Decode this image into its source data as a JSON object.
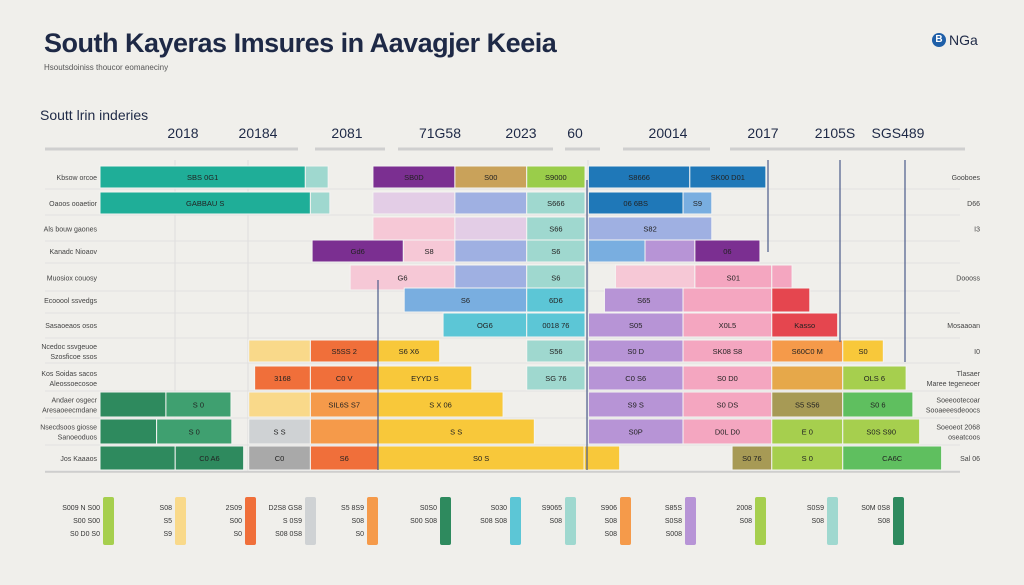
{
  "header": {
    "title": "South Kayeras  Imsures in Aavagjer Keeia",
    "subtitle": "Hsoutsdoiniss thoucor eomaneciny",
    "section": "Soutt lrin inderies",
    "logo_mark": "B",
    "logo_text": "NGa"
  },
  "chart_data": {
    "type": "bar",
    "orientation": "horizontal-stacked-timeline",
    "x_scale": [
      0,
      100
    ],
    "column_headers": [
      "2018",
      "20184",
      "2081",
      "71G58",
      "2023",
      "60",
      "20014",
      "2017",
      "2105S",
      "SGS489"
    ],
    "row_labels": [
      [
        "Kbsow orcoe"
      ],
      [
        "Oaoos ooaetior"
      ],
      [
        "Als bouw gaones"
      ],
      [
        "Kanadc Nioaov"
      ],
      [
        "Muosiox couosy"
      ],
      [
        "Ecooool ssvedgs"
      ],
      [
        "Sasaoeaos osos"
      ],
      [
        "Ncedoc ssvgeuoe",
        "Szosficoe ssos"
      ],
      [
        "Kos Soidas sacos",
        "Aleossoecosoe"
      ],
      [
        "Andaer osgecr",
        "Aresaoeecmdane"
      ],
      [
        "Nsecdsoos giosse",
        "Sanoeoduos"
      ],
      [
        "Jos Kaaaos"
      ]
    ],
    "right_labels": [
      [
        "Gooboes"
      ],
      [
        "D66"
      ],
      [
        "I3"
      ],
      [],
      [
        "Doooss"
      ],
      [],
      [
        "Mosaaoan"
      ],
      [
        "I0"
      ],
      [
        "Tlasaer",
        "Maree tegeneoer"
      ],
      [
        "Soeeootecoar",
        "Sooaeeesdeoocs"
      ],
      [
        "Soeoeot 2068",
        "oseatcoos"
      ],
      [
        "Sal 06"
      ]
    ],
    "colors": {
      "teal": "#1fae98",
      "lteal": "#9fd8cf",
      "purple": "#7b2f91",
      "tan": "#c9a25a",
      "lgreen": "#9acd4a",
      "blue": "#1f78b8",
      "lblue": "#79aee0",
      "lav": "#b794d6",
      "llav": "#e3cde6",
      "pink": "#f4a6c0",
      "lpink": "#f6c8d6",
      "peri": "#9fb0e2",
      "cyan": "#5cc6d6",
      "red": "#e5464f",
      "orange": "#f59a4a",
      "ored": "#f06f3a",
      "yellow": "#f8c83a",
      "lyellow": "#f9d98a",
      "amber": "#e6a84a",
      "olive": "#a79a55",
      "ygreen": "#a6cf4e",
      "green": "#5fbf5f",
      "dgreen": "#2e8a5e",
      "mgreen": "#3fa070",
      "gray": "#a9a9a9",
      "lgray": "#cfd2d4"
    },
    "bars": [
      [
        [
          0,
          24.3,
          "teal",
          "SBS 0G1"
        ],
        [
          24.3,
          27,
          "lteal",
          ""
        ],
        [
          32.3,
          42,
          "purple",
          "SB0D"
        ],
        [
          42,
          50.5,
          "tan",
          "S00"
        ],
        [
          50.5,
          57.4,
          "lgreen",
          "S9000"
        ],
        [
          57.8,
          69.8,
          "blue",
          "S8666"
        ],
        [
          69.8,
          78.8,
          "blue",
          "SK00 D01"
        ]
      ],
      [
        [
          0,
          24.9,
          "teal",
          "GABBAU S"
        ],
        [
          24.9,
          27.2,
          "lteal",
          ""
        ],
        [
          32.3,
          42,
          "llav",
          ""
        ],
        [
          42,
          50.5,
          "peri",
          ""
        ],
        [
          50.5,
          57.4,
          "lteal",
          "S666"
        ],
        [
          57.8,
          69,
          "blue",
          "06 6BS"
        ],
        [
          69,
          72.4,
          "lblue",
          "S9"
        ]
      ],
      [
        [
          32.3,
          42,
          "lpink",
          ""
        ],
        [
          42,
          50.5,
          "llav",
          ""
        ],
        [
          50.5,
          57.4,
          "lteal",
          "S66"
        ],
        [
          57.8,
          72.4,
          "peri",
          "S82"
        ]
      ],
      [
        [
          25.1,
          35.9,
          "purple",
          "Gd6"
        ],
        [
          35.9,
          42,
          "lpink",
          "S8"
        ],
        [
          42,
          50.5,
          "peri",
          ""
        ],
        [
          50.5,
          57.4,
          "lteal",
          "S6"
        ],
        [
          57.8,
          64.5,
          "lblue",
          ""
        ],
        [
          64.5,
          70.4,
          "lav",
          ""
        ],
        [
          70.4,
          78.1,
          "purple",
          "06"
        ]
      ],
      [
        [
          29.6,
          42,
          "lpink",
          "G6"
        ],
        [
          42,
          50.5,
          "peri",
          ""
        ],
        [
          50.5,
          57.4,
          "lteal",
          "S6"
        ],
        [
          61,
          70.4,
          "lpink",
          ""
        ],
        [
          70.4,
          79.5,
          "pink",
          "S01"
        ],
        [
          79.5,
          81.9,
          "pink",
          ""
        ]
      ],
      [
        [
          36,
          50.5,
          "lblue",
          "S6"
        ],
        [
          50.5,
          57.4,
          "cyan",
          "6D6"
        ],
        [
          59.7,
          69,
          "lav",
          "S65"
        ],
        [
          69,
          79.5,
          "pink",
          ""
        ],
        [
          79.5,
          84,
          "red",
          ""
        ]
      ],
      [
        [
          40.6,
          50.5,
          "cyan",
          "OG6"
        ],
        [
          50.5,
          57.4,
          "cyan",
          "0018 76"
        ],
        [
          57.8,
          69,
          "lav",
          "S05"
        ],
        [
          69,
          79.5,
          "pink",
          "X0L5"
        ],
        [
          79.5,
          87.3,
          "red",
          "Kasso"
        ]
      ],
      [
        [
          17.6,
          24.9,
          "lyellow",
          ""
        ],
        [
          24.9,
          32.9,
          "ored",
          "S5SS 2"
        ],
        [
          32.9,
          40.2,
          "yellow",
          "S6 X6"
        ],
        [
          50.5,
          57.4,
          "lteal",
          "S56"
        ],
        [
          57.8,
          69,
          "lav",
          "S0 D"
        ],
        [
          69,
          79.5,
          "pink",
          "SK08 S8"
        ],
        [
          79.5,
          87.9,
          "orange",
          "S60C0 M"
        ],
        [
          87.9,
          92.7,
          "yellow",
          "S0"
        ]
      ],
      [
        [
          18.3,
          24.9,
          "ored",
          "3168"
        ],
        [
          24.9,
          32.9,
          "ored",
          "C0 V"
        ],
        [
          32.9,
          44,
          "yellow",
          "EYYD S"
        ],
        [
          50.5,
          57.4,
          "lteal",
          "SG 76"
        ],
        [
          57.8,
          69,
          "lav",
          "C0 S6"
        ],
        [
          69,
          79.5,
          "pink",
          "S0 D0"
        ],
        [
          79.5,
          87.9,
          "amber",
          ""
        ],
        [
          87.9,
          95.4,
          "ygreen",
          "OLS 6"
        ]
      ],
      [
        [
          0,
          7.8,
          "dgreen",
          ""
        ],
        [
          7.8,
          15.5,
          "mgreen",
          "S 0"
        ],
        [
          17.6,
          24.9,
          "lyellow",
          ""
        ],
        [
          24.9,
          32.9,
          "orange",
          "SIL6S S7"
        ],
        [
          32.9,
          47.7,
          "yellow",
          "S X 06"
        ],
        [
          57.8,
          69,
          "lav",
          "S9 S"
        ],
        [
          69,
          79.5,
          "pink",
          "S0 DS"
        ],
        [
          79.5,
          87.9,
          "olive",
          "S5 S56"
        ],
        [
          87.9,
          96.2,
          "green",
          "S0 6"
        ]
      ],
      [
        [
          0,
          6.7,
          "dgreen",
          ""
        ],
        [
          6.7,
          15.6,
          "mgreen",
          "S 0"
        ],
        [
          17.6,
          24.9,
          "lgray",
          "S S"
        ],
        [
          24.9,
          32.9,
          "orange",
          ""
        ],
        [
          32.9,
          51.4,
          "yellow",
          "S S"
        ],
        [
          57.8,
          69,
          "lav",
          "S0P"
        ],
        [
          69,
          79.5,
          "pink",
          "D0L D0"
        ],
        [
          79.5,
          87.9,
          "ygreen",
          "E 0"
        ],
        [
          87.9,
          97,
          "ygreen",
          "S0S S90"
        ]
      ],
      [
        [
          0,
          8.9,
          "dgreen",
          ""
        ],
        [
          8.9,
          17,
          "dgreen",
          "C0 A6"
        ],
        [
          17.6,
          24.9,
          "gray",
          "C0"
        ],
        [
          24.9,
          32.9,
          "ored",
          "S6"
        ],
        [
          32.9,
          57.3,
          "yellow",
          "S0 S"
        ],
        [
          57.3,
          61.5,
          "yellow",
          ""
        ],
        [
          74.8,
          79.5,
          "olive",
          "S0 76"
        ],
        [
          79.5,
          87.9,
          "ygreen",
          "S 0"
        ],
        [
          87.9,
          99.6,
          "green",
          "CA6C"
        ]
      ]
    ],
    "legend": [
      {
        "color": "ygreen",
        "text": [
          "S009 N S00",
          "S00 S00",
          "S0 D0 S0"
        ]
      },
      {
        "color": "lyellow",
        "text": [
          "S08",
          "S5",
          "S9"
        ]
      },
      {
        "color": "ored",
        "text": [
          "2S09",
          "S00",
          "S0"
        ]
      },
      {
        "color": "lgray",
        "text": [
          "D2S8 GS8",
          "S 0S9",
          "S08 0S8"
        ]
      },
      {
        "color": "orange",
        "text": [
          "S5 8S9",
          "S08",
          "S0"
        ]
      },
      {
        "color": "dgreen",
        "text": [
          "S0S0",
          "S00 S08"
        ]
      },
      {
        "color": "cyan",
        "text": [
          "S030",
          "S08 S08"
        ]
      },
      {
        "color": "lteal",
        "text": [
          "S9065",
          "S08"
        ]
      },
      {
        "color": "orange",
        "text": [
          "S906",
          "S08",
          "S08"
        ]
      },
      {
        "color": "lav",
        "text": [
          "S85S",
          "S0S8",
          "S008"
        ]
      },
      {
        "color": "ygreen",
        "text": [
          "2008",
          "S08"
        ]
      },
      {
        "color": "lteal",
        "text": [
          "S0S9",
          "S08"
        ]
      },
      {
        "color": "dgreen",
        "text": [
          "S0M 0S8",
          "S08"
        ]
      }
    ]
  }
}
